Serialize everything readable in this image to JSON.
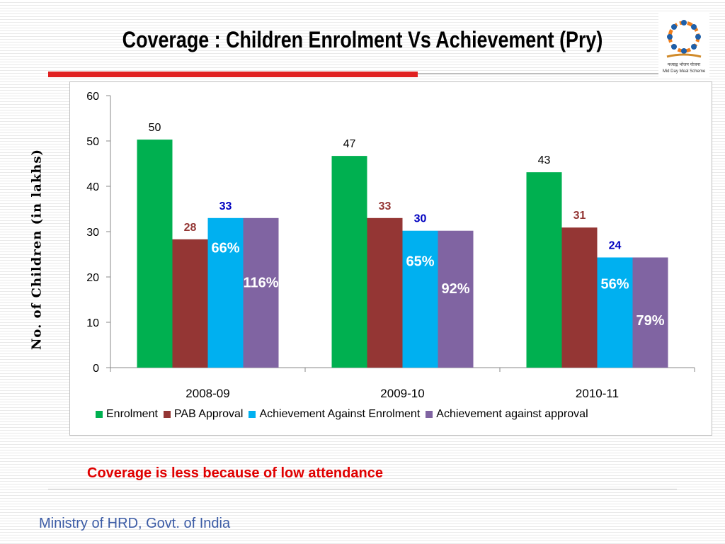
{
  "slide": {
    "title": "Coverage : Children Enrolment Vs Achievement (Pry)",
    "note": "Coverage is less because of low attendance",
    "footer": "Ministry of HRD, Govt. of India",
    "logo": {
      "text_hindi": "मध्याह्न भोजन योजना",
      "text_english": "Mid Day Meal Scheme"
    }
  },
  "colors": {
    "enrolment": "#00b050",
    "pab_approval": "#943634",
    "achievement_enrolment": "#00b0f0",
    "achievement_approval": "#8064a2",
    "label_red": "#943634",
    "label_blue": "#0000c0",
    "title_rule": "#e02020",
    "note": "#e00000",
    "footer": "#3b5ba5"
  },
  "chart_data": {
    "type": "bar",
    "title": "",
    "xlabel": "",
    "ylabel": "No. of Children (in lakhs)",
    "ylim": [
      0,
      60
    ],
    "yticks": [
      0,
      10,
      20,
      30,
      40,
      50,
      60
    ],
    "categories": [
      "2008-09",
      "2009-10",
      "2010-11"
    ],
    "series": [
      {
        "name": "Enrolment",
        "values": [
          50.3,
          46.7,
          43.1
        ],
        "labels": [
          "50",
          "47",
          "43"
        ],
        "label_color": "#000000"
      },
      {
        "name": "PAB Approval",
        "values": [
          28.3,
          33.0,
          30.9
        ],
        "labels": [
          "28",
          "33",
          "31"
        ],
        "label_color": "#943634"
      },
      {
        "name": "Achievement Against Enrolment",
        "values": [
          33.0,
          30.2,
          24.3
        ],
        "labels": [
          "33",
          "30",
          "24"
        ],
        "label_color": "#0000c0"
      },
      {
        "name": "Achievement against approval",
        "values": [
          33.0,
          30.2,
          24.3
        ],
        "labels": [
          "",
          "",
          ""
        ],
        "label_color": "#000000"
      }
    ],
    "percent_annotations": [
      {
        "category": "2008-09",
        "series": "Achievement Against Enrolment",
        "text": "66%",
        "at_value": 26.5
      },
      {
        "category": "2008-09",
        "series": "Achievement against approval",
        "text": "116%",
        "at_value": 18.8
      },
      {
        "category": "2009-10",
        "series": "Achievement Against Enrolment",
        "text": "65%",
        "at_value": 23.5
      },
      {
        "category": "2009-10",
        "series": "Achievement against approval",
        "text": "92%",
        "at_value": 17.5
      },
      {
        "category": "2010-11",
        "series": "Achievement Against Enrolment",
        "text": "56%",
        "at_value": 18.5
      },
      {
        "category": "2010-11",
        "series": "Achievement against approval",
        "text": "79%",
        "at_value": 10.5
      }
    ],
    "legend_position": "bottom",
    "grid": false
  }
}
